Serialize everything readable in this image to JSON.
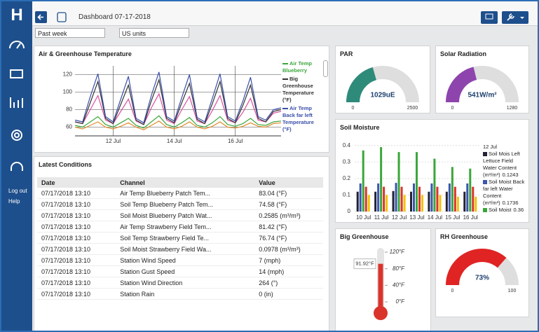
{
  "sidebar": {
    "logo": "H",
    "links": [
      "Log out",
      "Help"
    ]
  },
  "header": {
    "title": "Dashboard 07-17-2018"
  },
  "filters": {
    "period": "Past week",
    "units": "US units"
  },
  "temperature_chart": {
    "type": "line",
    "title": "Air & Greenhouse Temperature",
    "x": [
      10.75,
      11,
      11.25,
      11.5,
      11.75,
      12,
      12.25,
      12.5,
      12.75,
      13,
      13.25,
      13.5,
      13.75,
      14,
      14.25,
      14.5,
      14.75,
      15,
      15.25,
      15.5,
      15.75,
      16,
      16.25,
      16.5,
      16.75,
      17,
      17.25,
      17.5
    ],
    "xlim": [
      10.75,
      17.5
    ],
    "xticks": [
      {
        "value": 12,
        "label": "12 Jul"
      },
      {
        "value": 14,
        "label": "14 Jul"
      },
      {
        "value": 16,
        "label": "16 Jul"
      }
    ],
    "ylim": [
      50,
      130
    ],
    "yticks": [
      60,
      80,
      100,
      120
    ],
    "grid": true,
    "series": [
      {
        "color": "#e08a2a",
        "values": [
          60,
          58,
          62,
          66,
          60,
          58,
          61,
          65,
          60,
          57,
          62,
          67,
          60,
          58,
          61,
          66,
          60,
          58,
          61,
          66,
          60,
          59,
          61,
          65,
          61,
          60,
          64,
          65
        ]
      },
      {
        "name": "Air Temp Blueberry",
        "color": "#3aa63a",
        "values": [
          62,
          60,
          66,
          72,
          63,
          60,
          65,
          70,
          62,
          59,
          66,
          73,
          63,
          60,
          65,
          71,
          62,
          60,
          65,
          72,
          63,
          61,
          64,
          70,
          63,
          62,
          66,
          67
        ]
      },
      {
        "color": "#d94fa0",
        "values": [
          66,
          64,
          80,
          96,
          68,
          64,
          78,
          92,
          67,
          63,
          82,
          98,
          68,
          64,
          80,
          95,
          67,
          64,
          79,
          96,
          68,
          65,
          77,
          93,
          68,
          66,
          76,
          78
        ]
      },
      {
        "name": "Big Greenhouse Temperature (°F)",
        "color": "#333333",
        "values": [
          66,
          64,
          88,
          112,
          70,
          64,
          86,
          108,
          68,
          63,
          90,
          114,
          70,
          65,
          88,
          110,
          69,
          64,
          87,
          112,
          70,
          65,
          85,
          108,
          70,
          66,
          78,
          80
        ]
      },
      {
        "name": "Air Temp Back far left Temperature (°F)",
        "color": "#3a4fa8",
        "values": [
          68,
          66,
          95,
          121,
          72,
          66,
          92,
          118,
          70,
          65,
          96,
          123,
          72,
          67,
          94,
          120,
          71,
          66,
          93,
          121,
          72,
          67,
          90,
          117,
          72,
          68,
          80,
          82
        ]
      }
    ]
  },
  "latest_conditions": {
    "title": "Latest Conditions",
    "columns": [
      "Date",
      "Channel",
      "Value"
    ],
    "rows": [
      [
        "07/17/2018 13:10",
        "Air Temp Blueberry Patch Tem...",
        "83.04 (°F)"
      ],
      [
        "07/17/2018 13:10",
        "Soil Temp Blueberry Patch Tem...",
        "74.58 (°F)"
      ],
      [
        "07/17/2018 13:10",
        "Soil Moist Blueberry Patch Wat...",
        "0.2585 (m³/m³)"
      ],
      [
        "07/17/2018 13:10",
        "Air Temp Strawberry Field Tem...",
        "81.42 (°F)"
      ],
      [
        "07/17/2018 13:10",
        "Soil Temp Strawberry Field Te...",
        "76.74 (°F)"
      ],
      [
        "07/17/2018 13:10",
        "Soil Moist Strawberry Field Wa...",
        "0.0978 (m³/m³)"
      ],
      [
        "07/17/2018 13:10",
        "Station Wind Speed",
        "7 (mph)"
      ],
      [
        "07/17/2018 13:10",
        "Station Gust Speed",
        "14 (mph)"
      ],
      [
        "07/17/2018 13:10",
        "Station Wind Direction",
        "264 (°)"
      ],
      [
        "07/17/2018 13:10",
        "Station Rain",
        "0 (in)"
      ]
    ]
  },
  "par": {
    "type": "gauge",
    "title": "PAR",
    "values": [
      1029
    ],
    "value_labels": [
      "1029uE"
    ],
    "min": 0,
    "max": 2500,
    "color": "#2e8b7a"
  },
  "solar_radiation": {
    "type": "gauge",
    "title": "Solar Radiation",
    "values": [
      541
    ],
    "value_labels": [
      "541W/m²"
    ],
    "min": 0,
    "max": 1280,
    "color": "#8e44ad"
  },
  "soil_moisture": {
    "type": "bar",
    "title": "Soil Moisture",
    "categories": [
      "10 Jul",
      "11 Jul",
      "12 Jul",
      "13 Jul",
      "14 Jul",
      "15 Jul",
      "16 Jul"
    ],
    "ylim": [
      0,
      0.42
    ],
    "yticks": [
      0,
      0.1,
      0.2,
      0.3,
      0.4
    ],
    "grid": true,
    "series": [
      {
        "name": "Soil Mois Left Lettuce Field Water Content (m³/m³)",
        "color": "#222233",
        "values": [
          0.12,
          0.12,
          0.1243,
          0.12,
          0.12,
          0.12,
          0.12
        ]
      },
      {
        "name": "Soil Moist Back far left Water Content (m³/m³)",
        "color": "#3a56b0",
        "values": [
          0.17,
          0.17,
          0.1736,
          0.17,
          0.17,
          0.17,
          0.17
        ]
      },
      {
        "name": "Soil Moist",
        "color": "#3aa63a",
        "values": [
          0.37,
          0.39,
          0.36,
          0.36,
          0.32,
          0.27,
          0.26
        ]
      },
      {
        "color": "#d9342b",
        "values": [
          0.15,
          0.15,
          0.15,
          0.15,
          0.15,
          0.15,
          0.15
        ]
      },
      {
        "color": "#f2c200",
        "values": [
          0.1,
          0.1,
          0.1,
          0.1,
          0.1,
          0.09,
          0.09
        ]
      }
    ]
  },
  "big_greenhouse": {
    "type": "thermometer",
    "title": "Big Greenhouse",
    "values": [
      91.92
    ],
    "value_labels": [
      "91.92°F"
    ],
    "ylim": [
      0,
      120
    ],
    "color": "#d9342b",
    "yticks": [
      {
        "value": 120,
        "label": "120°F"
      },
      {
        "value": 80,
        "label": "80°F"
      },
      {
        "value": 40,
        "label": "40°F"
      },
      {
        "value": 0,
        "label": "0°F"
      }
    ]
  },
  "rh_greenhouse": {
    "type": "gauge",
    "title": "RH Greenhouse",
    "values": [
      73
    ],
    "value_labels": [
      "73%"
    ],
    "min": 0,
    "max": 100,
    "color": "#e02424"
  }
}
